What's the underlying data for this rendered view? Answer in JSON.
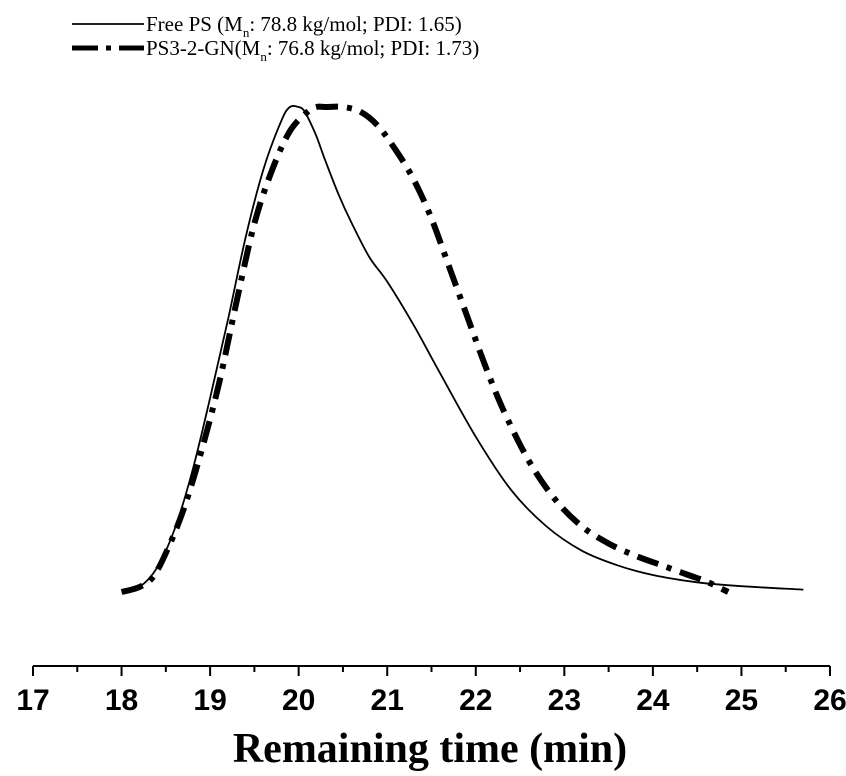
{
  "chart_data": {
    "type": "line",
    "xlabel": "Remaining time (min)",
    "ylabel": "",
    "xlim": [
      17,
      26
    ],
    "x_ticks": [
      17,
      18,
      19,
      20,
      21,
      22,
      23,
      24,
      25,
      26
    ],
    "y_axis_shown": false,
    "grid": false,
    "legend_position": "top-left",
    "series": [
      {
        "name": "Free PS",
        "name_prefix": "Free PS (M",
        "name_sub": "n",
        "name_suffix": ": 78.8 kg/mol; PDI: 1.65)",
        "style": "solid",
        "color": "#000000",
        "x": [
          18.0,
          18.2,
          18.4,
          18.6,
          18.8,
          19.0,
          19.2,
          19.4,
          19.6,
          19.8,
          19.9,
          20.0,
          20.05,
          20.1,
          20.2,
          20.3,
          20.45,
          20.6,
          20.8,
          21.0,
          21.3,
          21.6,
          22.0,
          22.4,
          22.8,
          23.2,
          23.6,
          24.0,
          24.5,
          25.0,
          25.7
        ],
        "y": [
          0.0,
          0.01,
          0.05,
          0.13,
          0.25,
          0.4,
          0.56,
          0.73,
          0.87,
          0.97,
          1.0,
          1.0,
          0.995,
          0.98,
          0.94,
          0.89,
          0.82,
          0.76,
          0.69,
          0.64,
          0.55,
          0.45,
          0.32,
          0.21,
          0.135,
          0.085,
          0.055,
          0.035,
          0.02,
          0.012,
          0.005
        ]
      },
      {
        "name": "PS3-2-GN",
        "name_prefix": "PS3-2-GN(M",
        "name_sub": "n",
        "name_suffix": ": 76.8 kg/mol; PDI: 1.73)",
        "style": "dash-dot",
        "color": "#000000",
        "x": [
          18.0,
          18.2,
          18.35,
          18.5,
          18.7,
          18.9,
          19.1,
          19.3,
          19.5,
          19.7,
          19.9,
          20.1,
          20.2,
          20.3,
          20.5,
          20.7,
          20.9,
          21.1,
          21.3,
          21.5,
          21.7,
          21.9,
          22.1,
          22.3,
          22.6,
          22.9,
          23.2,
          23.5,
          23.8,
          24.1,
          24.4,
          24.6,
          24.85
        ],
        "y": [
          0.0,
          0.01,
          0.03,
          0.08,
          0.17,
          0.29,
          0.43,
          0.6,
          0.76,
          0.87,
          0.95,
          0.99,
          1.0,
          1.0,
          1.0,
          0.99,
          0.96,
          0.91,
          0.85,
          0.77,
          0.67,
          0.57,
          0.47,
          0.38,
          0.27,
          0.19,
          0.135,
          0.1,
          0.075,
          0.055,
          0.035,
          0.022,
          0.0
        ]
      }
    ]
  }
}
